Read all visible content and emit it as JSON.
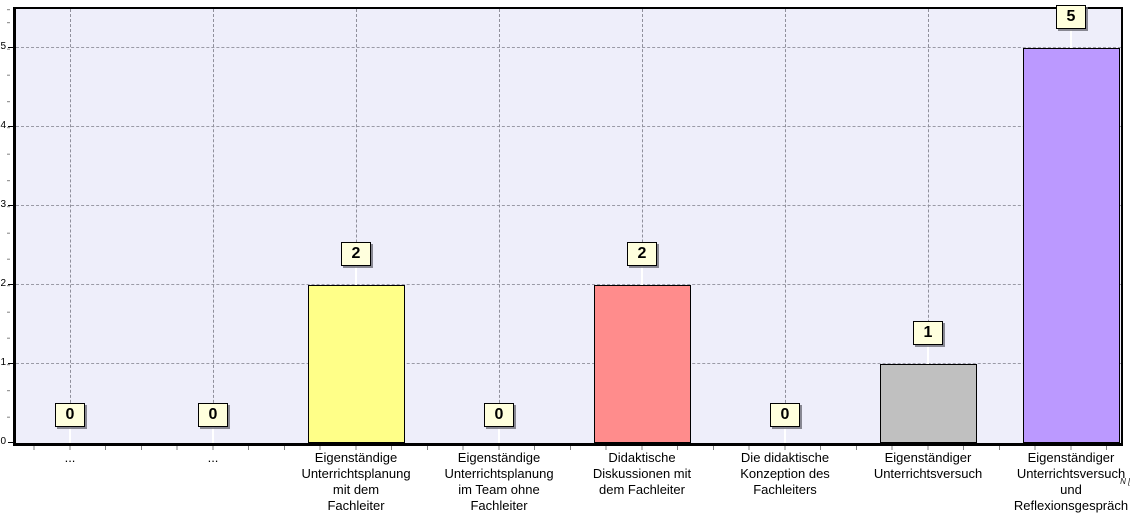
{
  "chart_data": {
    "type": "bar",
    "title": "",
    "xlabel": "",
    "ylabel": "",
    "ylim": [
      0,
      5.5
    ],
    "yticks": [
      "0",
      "1",
      "2",
      "3",
      "4",
      "5"
    ],
    "grid": "dashed horizontal and vertical gridlines",
    "legend": "none",
    "categories": [
      {
        "label_lines": [
          "..."
        ],
        "value": 0,
        "value_label": "0",
        "color": null
      },
      {
        "label_lines": [
          "..."
        ],
        "value": 0,
        "value_label": "0",
        "color": null
      },
      {
        "label_lines": [
          "Eigenständige",
          "Unterrichtsplanung",
          "mit dem",
          "Fachleiter"
        ],
        "value": 2,
        "value_label": "2",
        "color": "#ffff88"
      },
      {
        "label_lines": [
          "Eigenständige",
          "Unterrichtsplanung",
          "im Team ohne",
          "Fachleiter"
        ],
        "value": 0,
        "value_label": "0",
        "color": null
      },
      {
        "label_lines": [
          "Didaktische",
          "Diskussionen mit",
          "dem Fachleiter"
        ],
        "value": 2,
        "value_label": "2",
        "color": "#ff8c8c"
      },
      {
        "label_lines": [
          "Die didaktische",
          "Konzeption des",
          "Fachleiters"
        ],
        "value": 0,
        "value_label": "0",
        "color": null
      },
      {
        "label_lines": [
          "Eigenständiger",
          "Unterrichtsversuch"
        ],
        "value": 1,
        "value_label": "1",
        "color": "#c0c0c0"
      },
      {
        "label_lines": [
          "Eigenständiger",
          "Unterrichtsversuch",
          "und",
          "Reflexionsgespräch"
        ],
        "value": 5,
        "value_label": "5",
        "color": "#bb99ff",
        "note": "N [5]"
      }
    ],
    "colors": {
      "plot_background": "#eeeefa",
      "page_background": "#ffffff",
      "gridline": "#9a9aa6",
      "axis": "#000000",
      "bar_border": "#000000",
      "value_box_background": "#ffffdd",
      "value_box_border": "#000000",
      "value_box_shadow": "#6e6e78",
      "connector_line": "#ffffff"
    }
  }
}
